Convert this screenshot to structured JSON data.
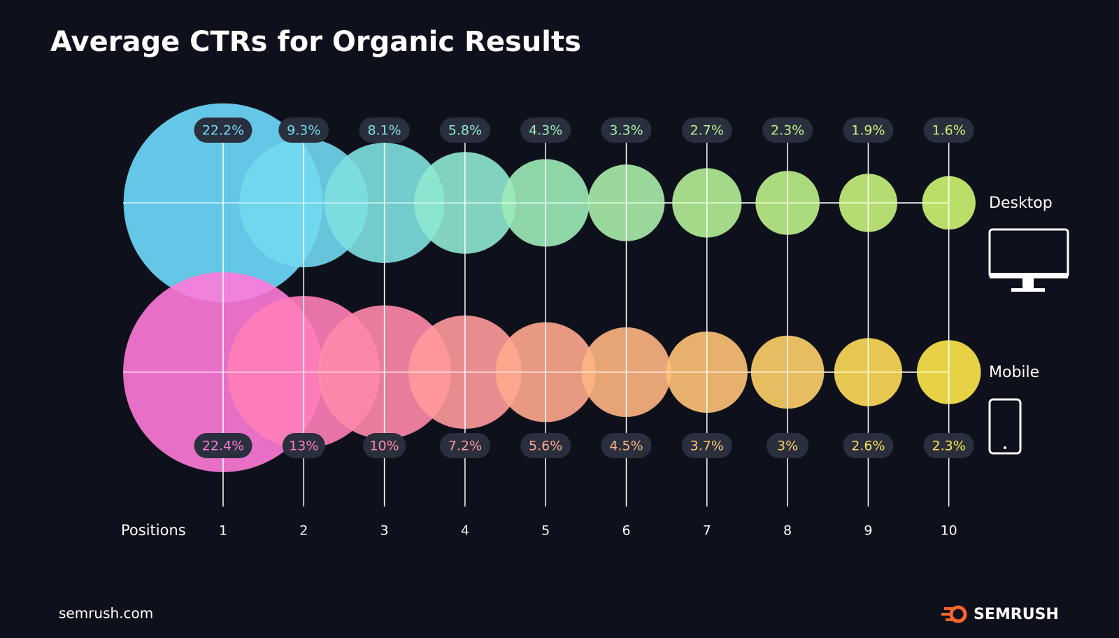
{
  "chart_data": {
    "type": "bubble",
    "title": "Average CTRs for Organic Results",
    "x_label": "Positions",
    "categories": [
      "1",
      "2",
      "3",
      "4",
      "5",
      "6",
      "7",
      "8",
      "9",
      "10"
    ],
    "series": [
      {
        "name": "Desktop",
        "values": [
          22.2,
          9.3,
          8.1,
          5.8,
          4.3,
          3.3,
          2.7,
          2.3,
          1.9,
          1.6
        ],
        "value_labels": [
          "22.2%",
          "9.3%",
          "8.1%",
          "5.8%",
          "4.3%",
          "3.3%",
          "2.7%",
          "2.3%",
          "1.9%",
          "1.6%"
        ],
        "colors": [
          "#6fdcff",
          "#72d8f0",
          "#7ee0e0",
          "#8ee8d0",
          "#9cecb8",
          "#a8eea8",
          "#b4f096",
          "#bef288",
          "#c6f37c",
          "#cef572"
        ]
      },
      {
        "name": "Mobile",
        "values": [
          22.4,
          13,
          10,
          7.2,
          5.6,
          4.5,
          3.7,
          3,
          2.6,
          2.3
        ],
        "value_labels": [
          "22.4%",
          "13%",
          "10%",
          "7.2%",
          "5.6%",
          "4.5%",
          "3.7%",
          "3%",
          "2.6%",
          "2.3%"
        ],
        "colors": [
          "#ff7ad9",
          "#ff7eb8",
          "#ff8aaa",
          "#ff9a9c",
          "#ffa88e",
          "#ffb582",
          "#ffc276",
          "#ffd06a",
          "#ffdc58",
          "#ffe84a"
        ]
      }
    ],
    "source": "semrush.com",
    "brand": "SEMRUSH"
  }
}
